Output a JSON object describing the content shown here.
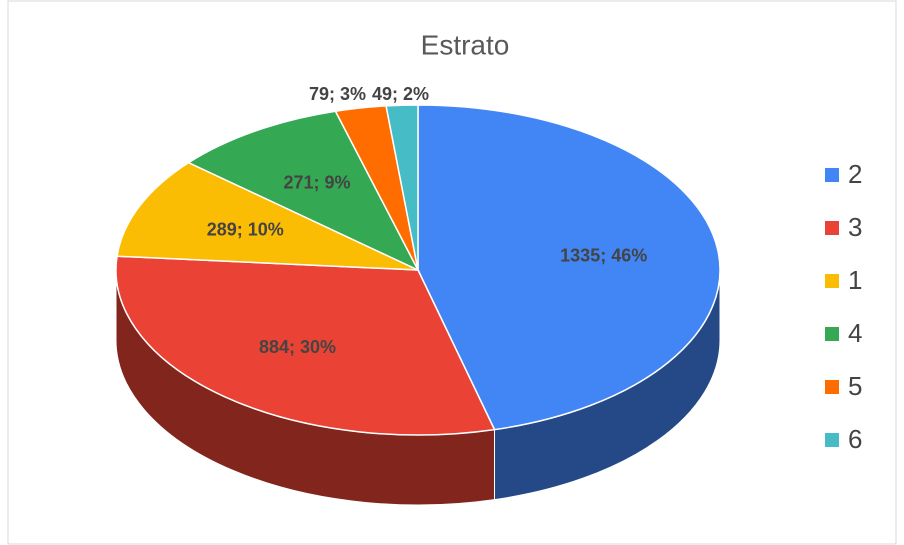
{
  "chart_data": {
    "type": "pie",
    "title": "Estrato",
    "categories": [
      "2",
      "3",
      "1",
      "4",
      "5",
      "6"
    ],
    "values": [
      1335,
      884,
      289,
      271,
      79,
      49
    ],
    "value_labels": [
      "1335; 46%",
      "884; 30%",
      "289; 10%",
      "271; 9%",
      "79; 3%",
      "49; 2%"
    ],
    "colors": [
      "#4285f4",
      "#ea4335",
      "#fbbc04",
      "#34a853",
      "#ff6d01",
      "#46bdc6"
    ],
    "legend": "right"
  }
}
